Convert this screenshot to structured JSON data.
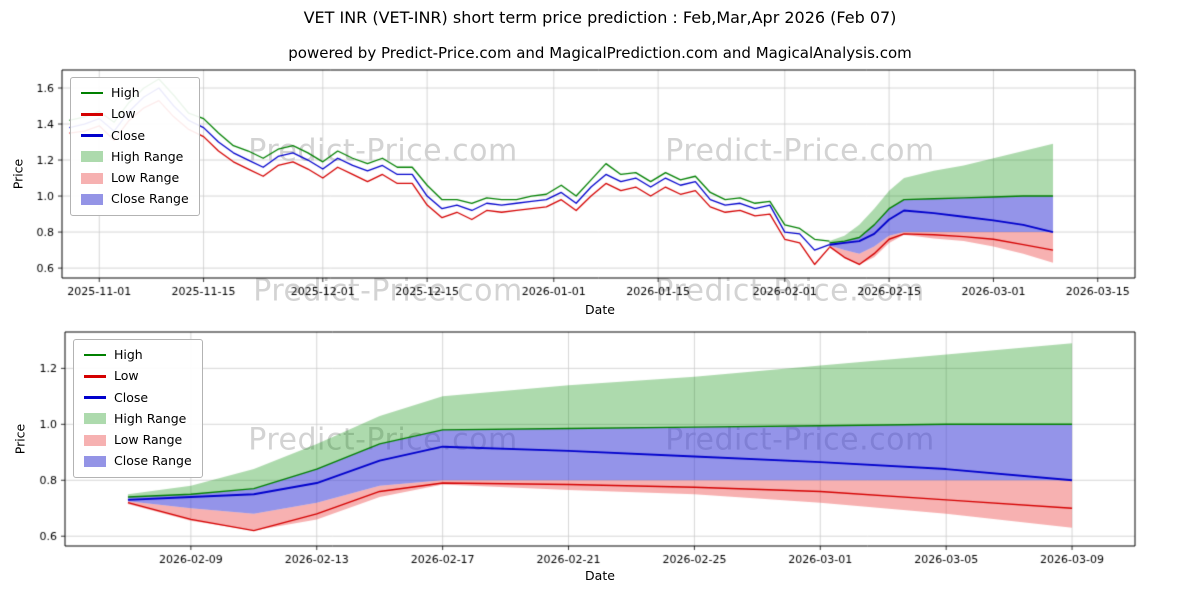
{
  "page": {
    "title": "VET INR (VET-INR) short term price prediction : Feb,Mar,Apr 2026 (Feb 07)",
    "subtitle": "powered by Predict-Price.com and MagicalPrediction.com and MagicalAnalysis.com"
  },
  "watermark": "Predict-Price.com",
  "colors": {
    "high_line": "#008000",
    "low_line": "#d40000",
    "close_line": "#0000cc",
    "high_band_fill": "rgba(0,140,0,0.32)",
    "low_band_fill": "rgba(237,83,83,0.45)",
    "close_band_fill": "rgba(60,60,215,0.55)",
    "grid": "#cccccc",
    "axis": "#000000",
    "watermark_gray": "#c9c9c9"
  },
  "chart_data": [
    {
      "type": "line",
      "xlabel": "Date",
      "ylabel": "Price",
      "x_domain": [
        "2025-10-27",
        "2026-03-20"
      ],
      "y_domain": [
        0.545,
        1.7
      ],
      "x_ticks": [
        "2025-11-01",
        "2025-11-15",
        "2025-12-01",
        "2025-12-15",
        "2026-01-01",
        "2026-01-15",
        "2026-02-01",
        "2026-02-15",
        "2026-03-01",
        "2026-03-15"
      ],
      "y_ticks": [
        0.6,
        0.8,
        1.0,
        1.2,
        1.4,
        1.6
      ],
      "legend": [
        {
          "label": "High",
          "swatch": "line",
          "color": "#008000"
        },
        {
          "label": "Low",
          "swatch": "line",
          "color": "#d40000"
        },
        {
          "label": "Close",
          "swatch": "line",
          "color": "#0000cc"
        },
        {
          "label": "High Range",
          "swatch": "patch",
          "color": "#addaad"
        },
        {
          "label": "Low Range",
          "swatch": "patch",
          "color": "#f6b1b1"
        },
        {
          "label": "Close Range",
          "swatch": "patch",
          "color": "#9494e6"
        }
      ],
      "history": {
        "dates": [
          "2025-10-28",
          "2025-10-30",
          "2025-11-01",
          "2025-11-03",
          "2025-11-05",
          "2025-11-07",
          "2025-11-09",
          "2025-11-11",
          "2025-11-13",
          "2025-11-15",
          "2025-11-17",
          "2025-11-19",
          "2025-11-21",
          "2025-11-23",
          "2025-11-25",
          "2025-11-27",
          "2025-11-29",
          "2025-12-01",
          "2025-12-03",
          "2025-12-05",
          "2025-12-07",
          "2025-12-09",
          "2025-12-11",
          "2025-12-13",
          "2025-12-15",
          "2025-12-17",
          "2025-12-19",
          "2025-12-21",
          "2025-12-23",
          "2025-12-25",
          "2025-12-27",
          "2025-12-29",
          "2025-12-31",
          "2026-01-02",
          "2026-01-04",
          "2026-01-06",
          "2026-01-08",
          "2026-01-10",
          "2026-01-12",
          "2026-01-14",
          "2026-01-16",
          "2026-01-18",
          "2026-01-20",
          "2026-01-22",
          "2026-01-24",
          "2026-01-26",
          "2026-01-28",
          "2026-01-30",
          "2026-02-01",
          "2026-02-03",
          "2026-02-05",
          "2026-02-07"
        ],
        "high": [
          1.42,
          1.44,
          1.47,
          1.41,
          1.52,
          1.6,
          1.65,
          1.56,
          1.46,
          1.43,
          1.35,
          1.28,
          1.25,
          1.21,
          1.26,
          1.28,
          1.24,
          1.19,
          1.25,
          1.21,
          1.18,
          1.21,
          1.16,
          1.16,
          1.06,
          0.98,
          0.98,
          0.96,
          0.99,
          0.98,
          0.98,
          1.0,
          1.01,
          1.06,
          1.0,
          1.09,
          1.18,
          1.12,
          1.13,
          1.08,
          1.13,
          1.09,
          1.11,
          1.02,
          0.98,
          0.99,
          0.96,
          0.97,
          0.84,
          0.82,
          0.76,
          0.75
        ],
        "low": [
          1.35,
          1.36,
          1.39,
          1.31,
          1.42,
          1.49,
          1.53,
          1.44,
          1.37,
          1.33,
          1.25,
          1.19,
          1.15,
          1.11,
          1.17,
          1.19,
          1.15,
          1.1,
          1.16,
          1.12,
          1.08,
          1.12,
          1.07,
          1.07,
          0.95,
          0.88,
          0.91,
          0.87,
          0.92,
          0.91,
          0.92,
          0.93,
          0.94,
          0.98,
          0.92,
          1.0,
          1.07,
          1.03,
          1.05,
          1.0,
          1.05,
          1.01,
          1.03,
          0.94,
          0.91,
          0.92,
          0.89,
          0.9,
          0.76,
          0.74,
          0.62,
          0.715
        ],
        "close": [
          1.38,
          1.4,
          1.43,
          1.36,
          1.47,
          1.55,
          1.6,
          1.5,
          1.42,
          1.38,
          1.3,
          1.24,
          1.2,
          1.16,
          1.22,
          1.24,
          1.2,
          1.15,
          1.21,
          1.17,
          1.14,
          1.17,
          1.12,
          1.12,
          1.0,
          0.93,
          0.95,
          0.92,
          0.96,
          0.95,
          0.96,
          0.97,
          0.98,
          1.02,
          0.96,
          1.05,
          1.12,
          1.08,
          1.1,
          1.05,
          1.1,
          1.06,
          1.08,
          0.98,
          0.95,
          0.96,
          0.93,
          0.95,
          0.8,
          0.79,
          0.7,
          0.73
        ]
      },
      "forecast": {
        "dates": [
          "2026-02-07",
          "2026-02-09",
          "2026-02-11",
          "2026-02-13",
          "2026-02-15",
          "2026-02-17",
          "2026-02-21",
          "2026-02-25",
          "2026-03-01",
          "2026-03-05",
          "2026-03-09"
        ],
        "high_max": [
          0.75,
          0.78,
          0.84,
          0.93,
          1.03,
          1.1,
          1.14,
          1.17,
          1.21,
          1.25,
          1.29
        ],
        "high": [
          0.74,
          0.75,
          0.77,
          0.84,
          0.93,
          0.98,
          0.985,
          0.99,
          0.995,
          1.0,
          1.0
        ],
        "close": [
          0.73,
          0.74,
          0.75,
          0.79,
          0.87,
          0.92,
          0.905,
          0.885,
          0.865,
          0.84,
          0.8
        ],
        "close_min": [
          0.725,
          0.7,
          0.68,
          0.72,
          0.78,
          0.8,
          0.8,
          0.8,
          0.8,
          0.8,
          0.8
        ],
        "low": [
          0.72,
          0.66,
          0.62,
          0.68,
          0.76,
          0.79,
          0.785,
          0.775,
          0.76,
          0.73,
          0.7
        ],
        "low_min": [
          0.715,
          0.655,
          0.62,
          0.66,
          0.74,
          0.785,
          0.765,
          0.75,
          0.72,
          0.68,
          0.63
        ]
      }
    },
    {
      "type": "line",
      "xlabel": "Date",
      "ylabel": "Price",
      "x_domain": [
        "2026-02-05",
        "2026-03-11"
      ],
      "y_domain": [
        0.565,
        1.33
      ],
      "x_ticks": [
        "2026-02-09",
        "2026-02-13",
        "2026-02-17",
        "2026-02-21",
        "2026-02-25",
        "2026-03-01",
        "2026-03-05",
        "2026-03-09"
      ],
      "y_ticks": [
        0.6,
        0.8,
        1.0,
        1.2
      ],
      "legend": [
        {
          "label": "High",
          "swatch": "line",
          "color": "#008000"
        },
        {
          "label": "Low",
          "swatch": "line",
          "color": "#d40000"
        },
        {
          "label": "Close",
          "swatch": "line",
          "color": "#0000cc"
        },
        {
          "label": "High Range",
          "swatch": "patch",
          "color": "#addaad"
        },
        {
          "label": "Low Range",
          "swatch": "patch",
          "color": "#f6b1b1"
        },
        {
          "label": "Close Range",
          "swatch": "patch",
          "color": "#9494e6"
        }
      ],
      "forecast": {
        "dates": [
          "2026-02-07",
          "2026-02-09",
          "2026-02-11",
          "2026-02-13",
          "2026-02-15",
          "2026-02-17",
          "2026-02-21",
          "2026-02-25",
          "2026-03-01",
          "2026-03-05",
          "2026-03-09"
        ],
        "high_max": [
          0.75,
          0.78,
          0.84,
          0.93,
          1.03,
          1.1,
          1.14,
          1.17,
          1.21,
          1.25,
          1.29
        ],
        "high": [
          0.74,
          0.75,
          0.77,
          0.84,
          0.93,
          0.98,
          0.985,
          0.99,
          0.995,
          1.0,
          1.0
        ],
        "close": [
          0.73,
          0.74,
          0.75,
          0.79,
          0.87,
          0.92,
          0.905,
          0.885,
          0.865,
          0.84,
          0.8
        ],
        "close_min": [
          0.725,
          0.7,
          0.68,
          0.72,
          0.78,
          0.8,
          0.8,
          0.8,
          0.8,
          0.8,
          0.8
        ],
        "low": [
          0.72,
          0.66,
          0.62,
          0.68,
          0.76,
          0.79,
          0.785,
          0.775,
          0.76,
          0.73,
          0.7
        ],
        "low_min": [
          0.715,
          0.655,
          0.62,
          0.66,
          0.74,
          0.785,
          0.765,
          0.75,
          0.72,
          0.68,
          0.63
        ]
      }
    }
  ]
}
